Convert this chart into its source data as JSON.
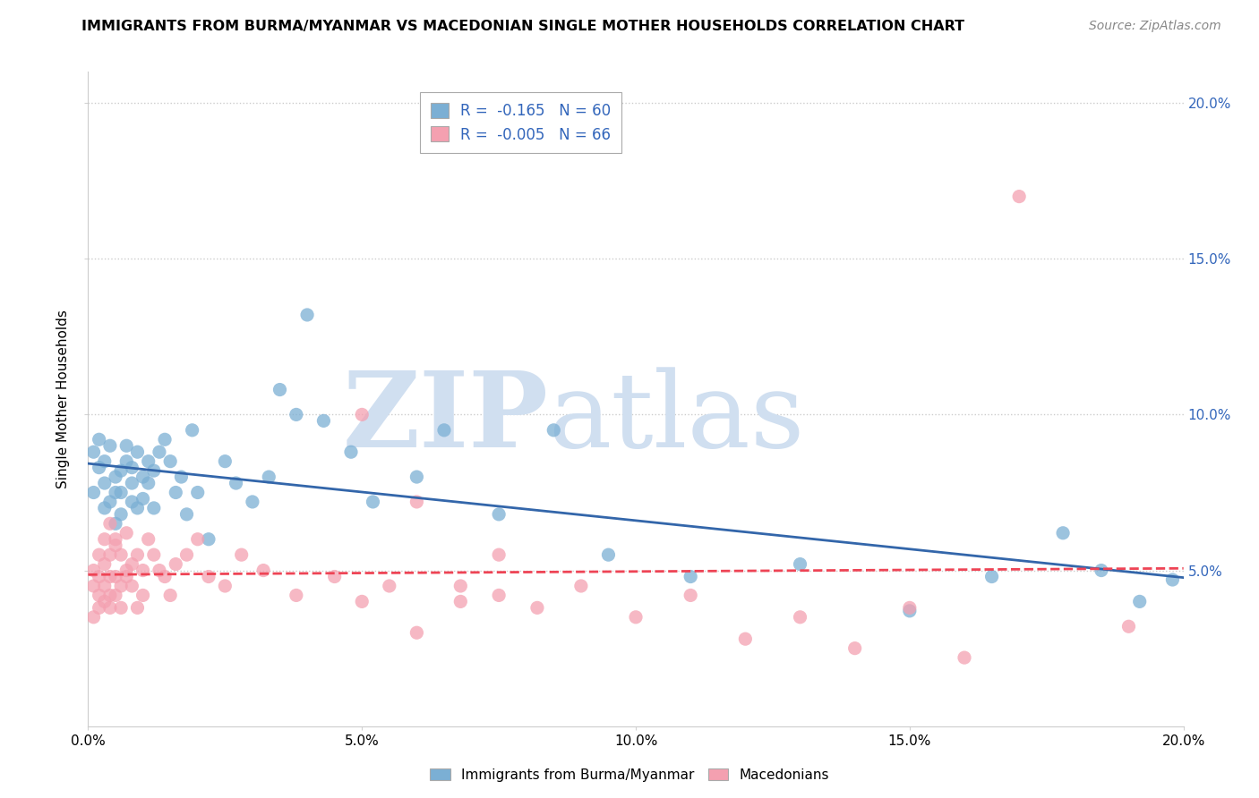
{
  "title": "IMMIGRANTS FROM BURMA/MYANMAR VS MACEDONIAN SINGLE MOTHER HOUSEHOLDS CORRELATION CHART",
  "source": "Source: ZipAtlas.com",
  "xlabel_blue": "Immigrants from Burma/Myanmar",
  "xlabel_pink": "Macedonians",
  "ylabel": "Single Mother Households",
  "blue_R": -0.165,
  "blue_N": 60,
  "pink_R": -0.005,
  "pink_N": 66,
  "xlim": [
    0.0,
    0.2
  ],
  "ylim": [
    0.0,
    0.21
  ],
  "yticks": [
    0.05,
    0.1,
    0.15,
    0.2
  ],
  "xticks": [
    0.0,
    0.05,
    0.1,
    0.15,
    0.2
  ],
  "blue_color": "#7BAFD4",
  "pink_color": "#F4A0B0",
  "regression_blue": "#3366AA",
  "regression_pink": "#EE4455",
  "watermark_zip": "ZIP",
  "watermark_atlas": "atlas",
  "watermark_color": "#D0DFF0",
  "background_color": "#FFFFFF",
  "blue_scatter_x": [
    0.001,
    0.001,
    0.002,
    0.002,
    0.003,
    0.003,
    0.003,
    0.004,
    0.004,
    0.005,
    0.005,
    0.005,
    0.006,
    0.006,
    0.006,
    0.007,
    0.007,
    0.008,
    0.008,
    0.008,
    0.009,
    0.009,
    0.01,
    0.01,
    0.011,
    0.011,
    0.012,
    0.012,
    0.013,
    0.014,
    0.015,
    0.016,
    0.017,
    0.018,
    0.019,
    0.02,
    0.022,
    0.025,
    0.027,
    0.03,
    0.033,
    0.035,
    0.038,
    0.04,
    0.043,
    0.048,
    0.052,
    0.06,
    0.065,
    0.075,
    0.085,
    0.095,
    0.11,
    0.13,
    0.15,
    0.165,
    0.178,
    0.185,
    0.192,
    0.198
  ],
  "blue_scatter_y": [
    0.088,
    0.075,
    0.083,
    0.092,
    0.07,
    0.078,
    0.085,
    0.072,
    0.09,
    0.065,
    0.075,
    0.08,
    0.082,
    0.075,
    0.068,
    0.09,
    0.085,
    0.078,
    0.083,
    0.072,
    0.07,
    0.088,
    0.08,
    0.073,
    0.085,
    0.078,
    0.082,
    0.07,
    0.088,
    0.092,
    0.085,
    0.075,
    0.08,
    0.068,
    0.095,
    0.075,
    0.06,
    0.085,
    0.078,
    0.072,
    0.08,
    0.108,
    0.1,
    0.132,
    0.098,
    0.088,
    0.072,
    0.08,
    0.095,
    0.068,
    0.095,
    0.055,
    0.048,
    0.052,
    0.037,
    0.048,
    0.062,
    0.05,
    0.04,
    0.047
  ],
  "pink_scatter_x": [
    0.001,
    0.001,
    0.001,
    0.002,
    0.002,
    0.002,
    0.002,
    0.003,
    0.003,
    0.003,
    0.003,
    0.004,
    0.004,
    0.004,
    0.004,
    0.004,
    0.005,
    0.005,
    0.005,
    0.005,
    0.006,
    0.006,
    0.006,
    0.007,
    0.007,
    0.007,
    0.008,
    0.008,
    0.009,
    0.009,
    0.01,
    0.01,
    0.011,
    0.012,
    0.013,
    0.014,
    0.015,
    0.016,
    0.018,
    0.02,
    0.022,
    0.025,
    0.028,
    0.032,
    0.038,
    0.045,
    0.05,
    0.055,
    0.06,
    0.068,
    0.075,
    0.082,
    0.09,
    0.1,
    0.11,
    0.12,
    0.13,
    0.14,
    0.15,
    0.16,
    0.05,
    0.06,
    0.068,
    0.075,
    0.17,
    0.19
  ],
  "pink_scatter_y": [
    0.05,
    0.045,
    0.035,
    0.042,
    0.055,
    0.048,
    0.038,
    0.04,
    0.052,
    0.06,
    0.045,
    0.048,
    0.042,
    0.055,
    0.038,
    0.065,
    0.058,
    0.048,
    0.042,
    0.06,
    0.055,
    0.045,
    0.038,
    0.05,
    0.062,
    0.048,
    0.052,
    0.045,
    0.038,
    0.055,
    0.05,
    0.042,
    0.06,
    0.055,
    0.05,
    0.048,
    0.042,
    0.052,
    0.055,
    0.06,
    0.048,
    0.045,
    0.055,
    0.05,
    0.042,
    0.048,
    0.04,
    0.045,
    0.03,
    0.045,
    0.042,
    0.038,
    0.045,
    0.035,
    0.042,
    0.028,
    0.035,
    0.025,
    0.038,
    0.022,
    0.1,
    0.072,
    0.04,
    0.055,
    0.17,
    0.032
  ]
}
